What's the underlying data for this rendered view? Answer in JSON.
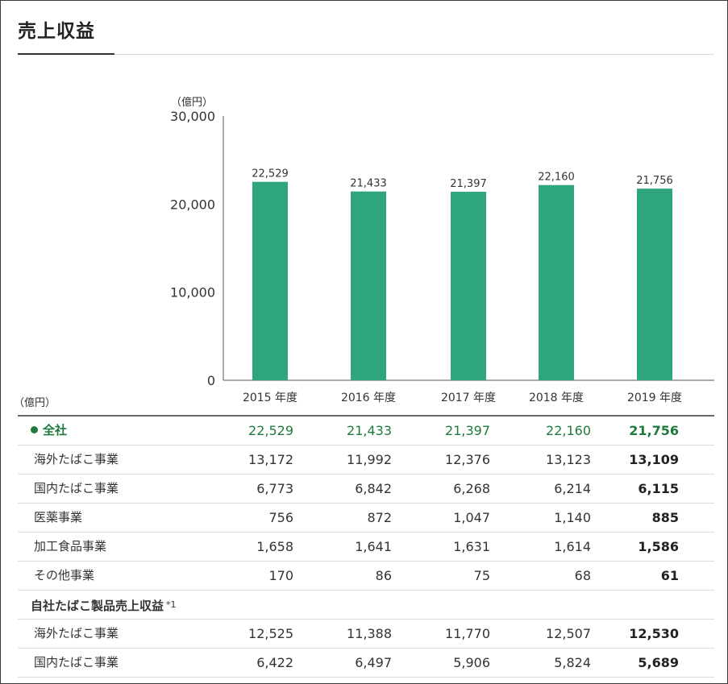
{
  "page": {
    "title": "売上収益"
  },
  "colors": {
    "bar": "#2fa57e",
    "bar_label": "#1e7a3c",
    "axis": "#555555"
  },
  "chart_data": {
    "type": "bar",
    "unit_label": "（億円）",
    "categories": [
      "2015 年度",
      "2016 年度",
      "2017 年度",
      "2018 年度",
      "2019 年度"
    ],
    "values": [
      22529,
      21433,
      21397,
      22160,
      21756
    ],
    "value_labels": [
      "22,529",
      "21,433",
      "21,397",
      "22,160",
      "21,756"
    ],
    "ylim": [
      0,
      30000
    ],
    "yticks": [
      0,
      10000,
      20000,
      30000
    ],
    "ytick_labels": [
      "0",
      "10,000",
      "20,000",
      "30,000"
    ],
    "grid": false
  },
  "table": {
    "unit_label": "（億円）",
    "rows": [
      {
        "label": "全社",
        "values": [
          "22,529",
          "21,433",
          "21,397",
          "22,160",
          "21,756"
        ],
        "type": "total"
      },
      {
        "label": "海外たばこ事業",
        "values": [
          "13,172",
          "11,992",
          "12,376",
          "13,123",
          "13,109"
        ],
        "type": "normal"
      },
      {
        "label": "国内たばこ事業",
        "values": [
          "6,773",
          "6,842",
          "6,268",
          "6,214",
          "6,115"
        ],
        "type": "normal"
      },
      {
        "label": "医薬事業",
        "values": [
          "756",
          "872",
          "1,047",
          "1,140",
          "885"
        ],
        "type": "normal"
      },
      {
        "label": "加工食品事業",
        "values": [
          "1,658",
          "1,641",
          "1,631",
          "1,614",
          "1,586"
        ],
        "type": "normal"
      },
      {
        "label": "その他事業",
        "values": [
          "170",
          "86",
          "75",
          "68",
          "61"
        ],
        "type": "normal"
      },
      {
        "label": "自社たばこ製品売上収益",
        "note": "*1",
        "values": [],
        "type": "header"
      },
      {
        "label": "海外たばこ事業",
        "values": [
          "12,525",
          "11,388",
          "11,770",
          "12,507",
          "12,530"
        ],
        "type": "normal"
      },
      {
        "label": "国内たばこ事業",
        "values": [
          "6,422",
          "6,497",
          "5,906",
          "5,824",
          "5,689"
        ],
        "type": "normal"
      }
    ]
  }
}
